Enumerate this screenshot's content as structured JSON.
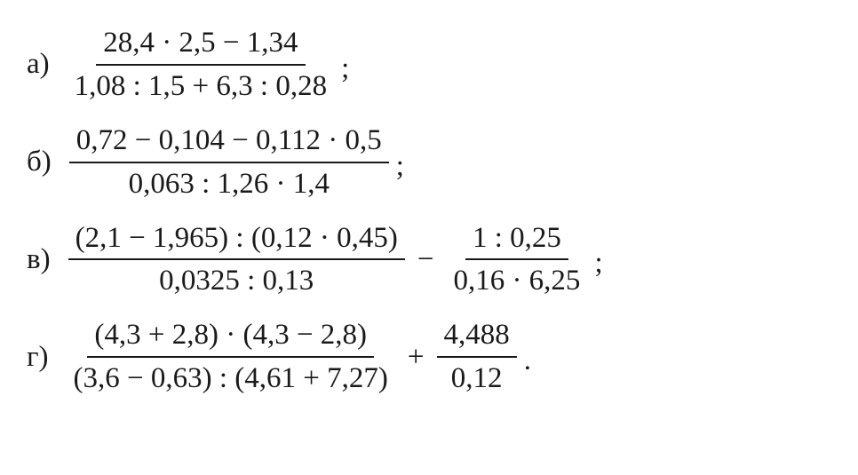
{
  "typography": {
    "font_family": "Times New Roman",
    "font_size_pt": 25,
    "color": "#1a1a1a",
    "background": "#ffffff"
  },
  "problems": [
    {
      "label": "а)",
      "terms": [
        {
          "type": "frac",
          "num": "28,4 · 2,5 − 1,34",
          "den": "1,08 : 1,5 + 6,3 : 0,28"
        }
      ],
      "punct": ";"
    },
    {
      "label": "б)",
      "terms": [
        {
          "type": "frac",
          "num": "0,72 − 0,104 − 0,112 · 0,5",
          "den": "0,063 : 1,26 · 1,4"
        }
      ],
      "punct": ";"
    },
    {
      "label": "в)",
      "terms": [
        {
          "type": "frac",
          "num": "(2,1 − 1,965) : (0,12 · 0,45)",
          "den": "0,0325 : 0,13"
        },
        {
          "type": "op",
          "text": "−"
        },
        {
          "type": "frac",
          "num": "1 : 0,25",
          "den": "0,16 · 6,25"
        }
      ],
      "punct": ";"
    },
    {
      "label": "г)",
      "terms": [
        {
          "type": "frac",
          "num": "(4,3 + 2,8) · (4,3 − 2,8)",
          "den": "(3,6 − 0,63) : (4,61 + 7,27)"
        },
        {
          "type": "op",
          "text": "+"
        },
        {
          "type": "frac",
          "num": "4,488",
          "den": "0,12"
        }
      ],
      "punct": "."
    }
  ]
}
